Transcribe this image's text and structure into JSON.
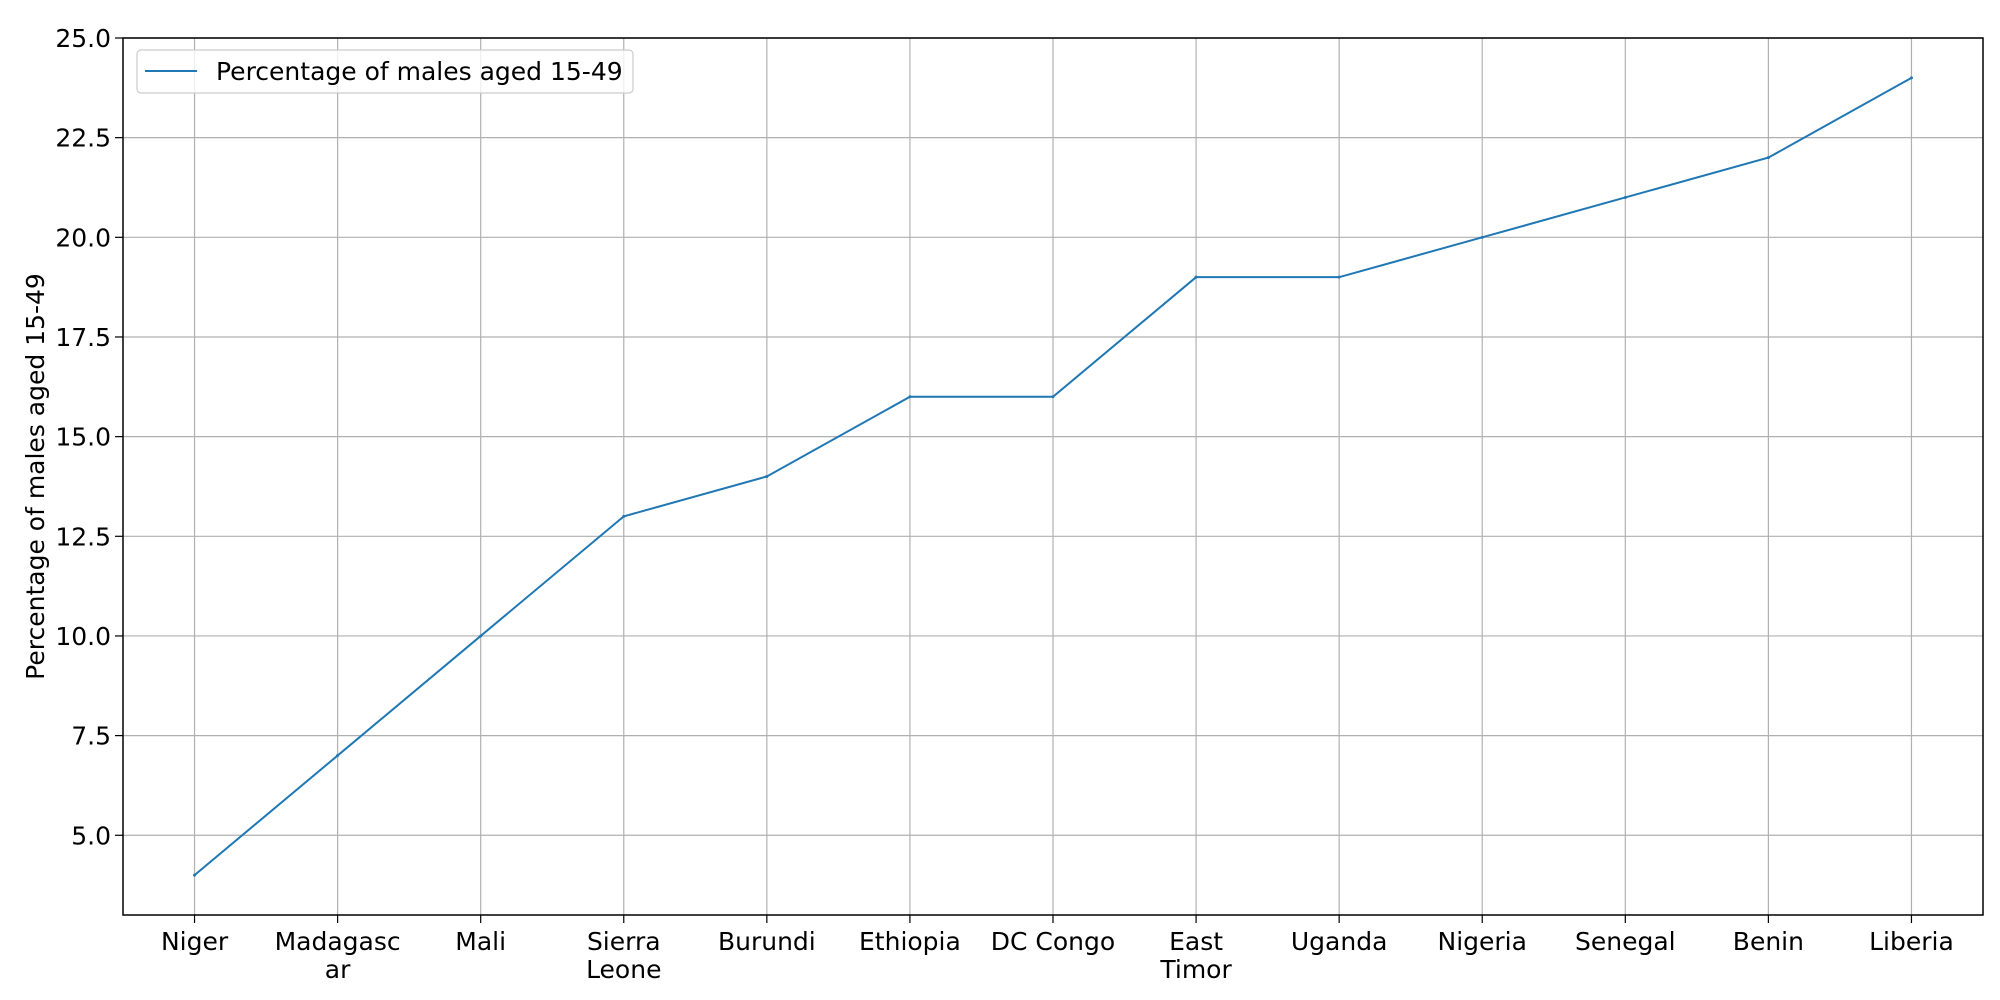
{
  "chart_data": {
    "type": "line",
    "categories": [
      [
        "Niger"
      ],
      [
        "Madagasc",
        "ar"
      ],
      [
        "Mali"
      ],
      [
        "Sierra",
        "Leone"
      ],
      [
        "Burundi"
      ],
      [
        "Ethiopia"
      ],
      [
        "DC Congo"
      ],
      [
        "East",
        "Timor"
      ],
      [
        "Uganda"
      ],
      [
        "Nigeria"
      ],
      [
        "Senegal"
      ],
      [
        "Benin"
      ],
      [
        "Liberia"
      ]
    ],
    "series": [
      {
        "name": "Percentage of males aged 15-49",
        "color": "#1f77b4",
        "values": [
          4,
          7,
          10,
          13,
          14,
          16,
          16,
          19,
          19,
          20,
          21,
          22,
          24
        ]
      }
    ],
    "ylabel": "Percentage of males aged 15-49",
    "ylim": [
      3,
      25
    ],
    "yticks": [
      "5.0",
      "7.5",
      "10.0",
      "12.5",
      "15.0",
      "17.5",
      "20.0",
      "22.5",
      "25.0"
    ],
    "grid": true,
    "legend": "upper-left"
  }
}
